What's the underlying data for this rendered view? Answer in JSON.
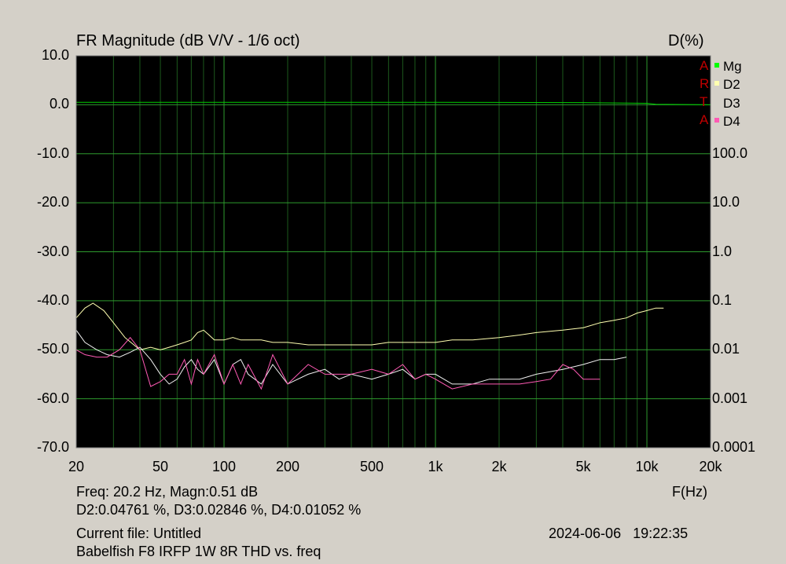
{
  "chart_data": {
    "type": "line",
    "title": "FR Magnitude (dB V/V - 1/6 oct)",
    "ylabel_right": "D(%)",
    "xlabel": "F(Hz)",
    "x_scale": "log",
    "xlim": [
      20,
      20000
    ],
    "ylim": [
      -70,
      10
    ],
    "y2_scale": "log",
    "y2lim": [
      0.0001,
      100
    ],
    "x_ticks": [
      {
        "value": 20,
        "label": "20"
      },
      {
        "value": 50,
        "label": "50"
      },
      {
        "value": 100,
        "label": "100"
      },
      {
        "value": 200,
        "label": "200"
      },
      {
        "value": 500,
        "label": "500"
      },
      {
        "value": 1000,
        "label": "1k"
      },
      {
        "value": 2000,
        "label": "2k"
      },
      {
        "value": 5000,
        "label": "5k"
      },
      {
        "value": 10000,
        "label": "10k"
      },
      {
        "value": 20000,
        "label": "20k"
      }
    ],
    "y_ticks": [
      {
        "value": 10,
        "label": "10.0"
      },
      {
        "value": 0,
        "label": "0.0"
      },
      {
        "value": -10,
        "label": "-10.0"
      },
      {
        "value": -20,
        "label": "-20.0"
      },
      {
        "value": -30,
        "label": "-30.0"
      },
      {
        "value": -40,
        "label": "-40.0"
      },
      {
        "value": -50,
        "label": "-50.0"
      },
      {
        "value": -60,
        "label": "-60.0"
      },
      {
        "value": -70,
        "label": "-70.0"
      }
    ],
    "y2_ticks": [
      {
        "value": 100,
        "label": "100.0"
      },
      {
        "value": 10,
        "label": "10.0"
      },
      {
        "value": 1,
        "label": "1.0"
      },
      {
        "value": 0.1,
        "label": "0.1"
      },
      {
        "value": 0.01,
        "label": "0.01"
      },
      {
        "value": 0.001,
        "label": "0.001"
      },
      {
        "value": 0.0001,
        "label": "0.0001"
      }
    ],
    "grid": true,
    "legend_placement": "top-right",
    "series": [
      {
        "name": "Mg",
        "color": "#00d000",
        "axis": "left",
        "x": [
          20,
          100,
          1000,
          5000,
          10000,
          11000,
          20000
        ],
        "y": [
          0.5,
          0.5,
          0.5,
          0.45,
          0.3,
          0.1,
          0.0
        ]
      },
      {
        "name": "D2",
        "color": "#ffffb0",
        "axis": "left",
        "x": [
          20,
          22,
          24,
          27,
          30,
          34,
          40,
          45,
          50,
          55,
          60,
          65,
          70,
          75,
          80,
          85,
          90,
          100,
          110,
          120,
          130,
          150,
          170,
          200,
          250,
          300,
          400,
          500,
          600,
          700,
          800,
          1000,
          1200,
          1500,
          2000,
          2500,
          3000,
          4000,
          5000,
          6000,
          7000,
          8000,
          9000,
          10000,
          11000,
          12000
        ],
        "y": [
          -43.5,
          -41.5,
          -40.5,
          -42,
          -44.5,
          -47.5,
          -50,
          -49.5,
          -50,
          -49.5,
          -49,
          -48.5,
          -48,
          -46.5,
          -46,
          -47,
          -48,
          -48,
          -47.5,
          -48,
          -48,
          -48,
          -48.5,
          -48.5,
          -49,
          -49,
          -49,
          -49,
          -48.5,
          -48.5,
          -48.5,
          -48.5,
          -48,
          -48,
          -47.5,
          -47,
          -46.5,
          -46,
          -45.5,
          -44.5,
          -44,
          -43.5,
          -42.5,
          -42,
          -41.5,
          -41.5
        ]
      },
      {
        "name": "D3",
        "color": "#f2f2f2",
        "axis": "left",
        "x": [
          20,
          22,
          25,
          28,
          32,
          36,
          40,
          45,
          50,
          55,
          60,
          65,
          70,
          75,
          80,
          90,
          100,
          110,
          120,
          130,
          150,
          170,
          200,
          250,
          300,
          350,
          400,
          500,
          600,
          700,
          800,
          900,
          1000,
          1200,
          1500,
          1800,
          2000,
          2500,
          3000,
          4000,
          5000,
          6000,
          7000,
          8000
        ],
        "y": [
          -46,
          -48.5,
          -50,
          -51,
          -51.5,
          -50.5,
          -49.5,
          -52,
          -55,
          -57,
          -56,
          -53.5,
          -52,
          -54,
          -55,
          -52,
          -57,
          -53,
          -52,
          -55,
          -57,
          -53,
          -57,
          -55,
          -54,
          -56,
          -55,
          -56,
          -55,
          -54,
          -56,
          -55,
          -55,
          -57,
          -57,
          -56,
          -56,
          -56,
          -55,
          -54,
          -53,
          -52,
          -52,
          -51.5
        ]
      },
      {
        "name": "D4",
        "color": "#ff5ab4",
        "axis": "left",
        "x": [
          20,
          22,
          25,
          28,
          32,
          36,
          40,
          45,
          50,
          55,
          60,
          65,
          70,
          75,
          80,
          90,
          100,
          110,
          120,
          130,
          150,
          170,
          200,
          250,
          300,
          400,
          500,
          600,
          700,
          800,
          900,
          1000,
          1200,
          1500,
          2000,
          2500,
          3000,
          3500,
          4000,
          4500,
          5000,
          6000
        ],
        "y": [
          -50,
          -51,
          -51.5,
          -51.5,
          -50,
          -47.5,
          -50,
          -57.5,
          -56.5,
          -55,
          -55,
          -52,
          -57,
          -52,
          -55,
          -51,
          -57,
          -53,
          -57,
          -53,
          -58,
          -51,
          -57,
          -53,
          -55,
          -55,
          -54,
          -55,
          -53,
          -56,
          -55,
          -56,
          -58,
          -57,
          -57,
          -57,
          -56.5,
          -56,
          -53,
          -54,
          -56,
          -56
        ]
      }
    ]
  },
  "header": {
    "title": "FR Magnitude (dB V/V - 1/6 oct)",
    "right_axis_title": "D(%)"
  },
  "legend": {
    "arta_letters": [
      "A",
      "R",
      "T",
      "A"
    ],
    "items": [
      {
        "label": "Mg",
        "color": "#00ff00"
      },
      {
        "label": "D2",
        "color": "#ffffb0"
      },
      {
        "label": "D3",
        "color": "#d4d0c8"
      },
      {
        "label": "D4",
        "color": "#ff5ab4"
      }
    ]
  },
  "footer": {
    "cursor_line1": "Freq: 20.2 Hz, Magn:0.51 dB",
    "cursor_line2": "D2:0.04761 %, D3:0.02846 %, D4:0.01052 %",
    "xlabel": "F(Hz)",
    "current_file": "Current file: Untitled",
    "timestamp": "2024-06-06   19:22:35",
    "description": "Babelfish F8 IRFP 1W 8R THD vs. freq"
  }
}
